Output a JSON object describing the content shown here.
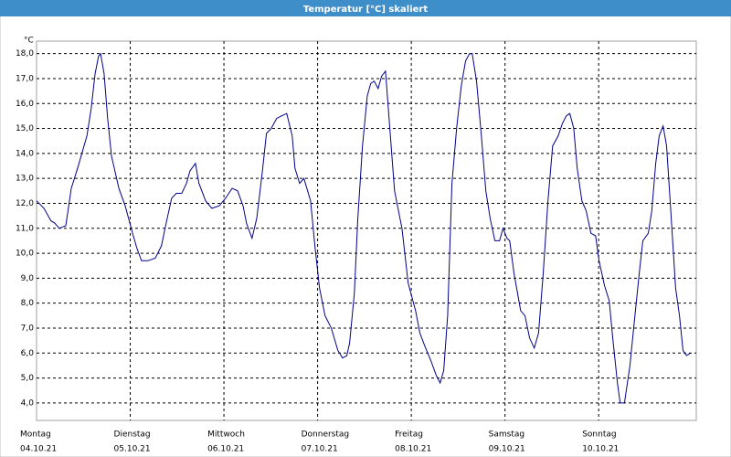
{
  "chart_data": {
    "type": "line",
    "title": "Temperatur [°C] skaliert",
    "y_unit": "°C",
    "grid": true,
    "xlim": [
      0,
      169
    ],
    "ylim": [
      3.3,
      18.5
    ],
    "xticks": [
      {
        "value": 0,
        "label": "Montag",
        "date": "04.10.21"
      },
      {
        "value": 24,
        "label": "Dienstag",
        "date": "05.10.21"
      },
      {
        "value": 48,
        "label": "Mittwoch",
        "date": "06.10.21"
      },
      {
        "value": 72,
        "label": "Donnerstag",
        "date": "07.10.21"
      },
      {
        "value": 96,
        "label": "Freitag",
        "date": "08.10.21"
      },
      {
        "value": 120,
        "label": "Samstag",
        "date": "09.10.21"
      },
      {
        "value": 144,
        "label": "Sonntag",
        "date": "10.10.21"
      }
    ],
    "yticks": [
      {
        "value": 4,
        "label": "4,0"
      },
      {
        "value": 5,
        "label": "5,0"
      },
      {
        "value": 6,
        "label": "6,0"
      },
      {
        "value": 7,
        "label": "7,0"
      },
      {
        "value": 8,
        "label": "8,0"
      },
      {
        "value": 9,
        "label": "9,0"
      },
      {
        "value": 10,
        "label": "10,0"
      },
      {
        "value": 11,
        "label": "11,0"
      },
      {
        "value": 12,
        "label": "12,0"
      },
      {
        "value": 13,
        "label": "13,0"
      },
      {
        "value": 14,
        "label": "14,0"
      },
      {
        "value": 15,
        "label": "15,0"
      },
      {
        "value": 16,
        "label": "16,0"
      },
      {
        "value": 17,
        "label": "17,0"
      },
      {
        "value": 18,
        "label": "18,0"
      }
    ],
    "x": [
      0,
      1.9,
      3.7,
      4.7,
      5.8,
      7.5,
      8.9,
      10.5,
      12.9,
      14.0,
      15.0,
      15.9,
      16.4,
      17.3,
      18.2,
      19.2,
      21.1,
      22.7,
      24.6,
      25.7,
      26.9,
      28.5,
      30.4,
      32.0,
      33.2,
      34.6,
      35.8,
      37.2,
      38.4,
      39.3,
      40.7,
      41.6,
      43.3,
      44.9,
      46.8,
      48.4,
      50.1,
      51.5,
      52.9,
      53.8,
      55.2,
      56.4,
      57.8,
      58.9,
      60.1,
      61.5,
      62.7,
      64.1,
      65.5,
      66.2,
      67.4,
      68.5,
      70.2,
      71.3,
      72.5,
      73.9,
      75.5,
      77.2,
      78.4,
      79.5,
      80.2,
      81.4,
      82.3,
      83.5,
      84.7,
      85.6,
      86.5,
      87.5,
      88.4,
      89.4,
      90.3,
      91.7,
      93.6,
      95.2,
      97.1,
      98.2,
      99.4,
      101.0,
      102.4,
      103.4,
      104.3,
      105.3,
      106.4,
      107.6,
      108.8,
      109.9,
      110.9,
      111.6,
      112.7,
      113.9,
      115.1,
      116.2,
      117.4,
      118.6,
      119.5,
      120.5,
      121.2,
      122.3,
      124.0,
      125.1,
      126.3,
      127.5,
      128.6,
      129.8,
      131.0,
      132.2,
      133.6,
      134.7,
      135.7,
      136.6,
      137.6,
      138.5,
      139.7,
      140.8,
      142.0,
      143.2,
      144.1,
      145.5,
      146.7,
      147.6,
      148.8,
      149.5,
      150.6,
      152.0,
      153.4,
      154.4,
      155.3,
      156.7,
      157.6,
      158.6,
      159.5,
      160.5,
      161.4,
      162.3,
      163.7,
      164.7,
      165.6,
      166.5,
      167.5
    ],
    "series": [
      {
        "color": "#00008b",
        "values": [
          12.1,
          11.8,
          11.3,
          11.2,
          11.0,
          11.1,
          12.6,
          13.4,
          14.7,
          15.8,
          17.2,
          17.9,
          18.0,
          17.2,
          15.4,
          13.9,
          12.6,
          11.9,
          10.8,
          10.2,
          9.7,
          9.7,
          9.8,
          10.3,
          11.2,
          12.2,
          12.4,
          12.4,
          12.8,
          13.3,
          13.6,
          12.8,
          12.1,
          11.8,
          11.9,
          12.2,
          12.6,
          12.5,
          11.9,
          11.2,
          10.6,
          11.4,
          13.2,
          14.8,
          15.0,
          15.4,
          15.5,
          15.6,
          14.7,
          13.4,
          12.8,
          13.0,
          12.1,
          10.3,
          8.6,
          7.5,
          7.0,
          6.1,
          5.8,
          5.9,
          6.4,
          8.4,
          11.4,
          14.3,
          16.3,
          16.8,
          16.9,
          16.6,
          17.1,
          17.3,
          15.4,
          12.5,
          11.0,
          8.8,
          7.7,
          6.8,
          6.3,
          5.7,
          5.1,
          4.8,
          5.3,
          7.5,
          12.8,
          15.0,
          16.7,
          17.7,
          18.0,
          18.0,
          16.9,
          14.8,
          12.5,
          11.4,
          10.5,
          10.5,
          11.0,
          10.6,
          10.5,
          9.2,
          7.7,
          7.5,
          6.6,
          6.2,
          6.8,
          9.2,
          12.1,
          14.3,
          14.7,
          15.2,
          15.5,
          15.6,
          15.0,
          13.4,
          12.1,
          11.7,
          10.8,
          10.7,
          9.7,
          8.7,
          8.1,
          6.6,
          4.8,
          4.0,
          4.0,
          5.5,
          7.7,
          9.2,
          10.5,
          10.8,
          11.7,
          13.6,
          14.7,
          15.1,
          14.3,
          12.1,
          8.6,
          7.5,
          6.1,
          5.9,
          6.0
        ]
      }
    ]
  }
}
